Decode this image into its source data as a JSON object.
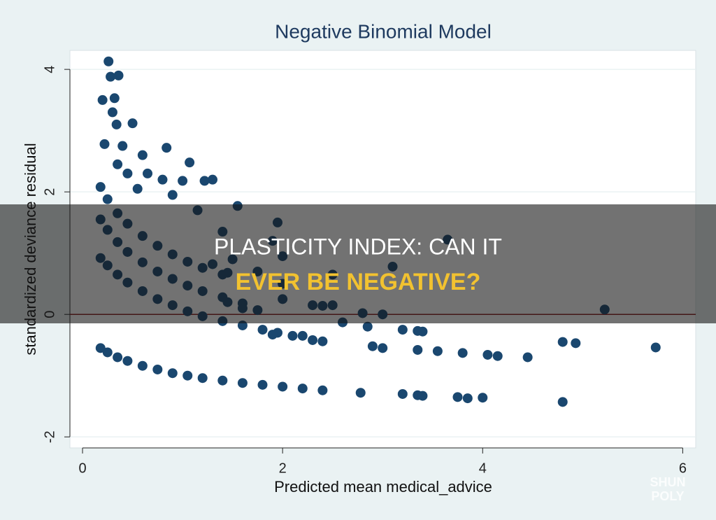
{
  "chart_data": {
    "type": "scatter",
    "title": "Negative Binomial Model",
    "x_label": "Predicted mean medical_advice",
    "y_label": "standardized deviance residual",
    "color": "#1a476f",
    "reference_line": 0,
    "reference_color": "#8b1a1a",
    "grid": true,
    "xlim": [
      -0.126,
      6.13
    ],
    "ylim": [
      -2.18,
      4.31
    ],
    "xticks": [
      0,
      2,
      4,
      6
    ],
    "yticks": [
      -2,
      0,
      2,
      4
    ],
    "x": [
      0.18,
      0.25,
      0.35,
      0.45,
      0.6,
      0.75,
      0.9,
      1.05,
      1.2,
      1.4,
      1.6,
      1.8,
      2.0,
      2.2,
      2.4,
      0.18,
      0.25,
      0.35,
      0.45,
      0.6,
      0.75,
      0.9,
      1.05,
      1.2,
      1.4,
      1.6,
      1.8,
      1.95,
      2.1,
      0.18,
      0.25,
      0.35,
      0.45,
      0.6,
      0.75,
      0.9,
      1.05,
      1.2,
      1.4,
      1.6,
      0.18,
      0.25,
      0.35,
      0.45,
      0.6,
      0.75,
      0.9,
      1.05,
      1.2,
      1.4,
      0.26,
      0.28,
      0.36,
      0.32,
      0.2,
      0.3,
      0.34,
      0.5,
      0.22,
      0.4,
      0.84,
      0.6,
      0.35,
      0.45,
      0.65,
      1.07,
      0.8,
      1.0,
      1.22,
      0.55,
      1.3,
      0.9,
      1.55,
      1.15,
      1.4,
      1.95,
      1.9,
      2.0,
      1.5,
      1.75,
      2.0,
      2.5,
      3.1,
      3.65,
      2.0,
      2.5,
      2.6,
      2.85,
      2.8,
      3.0,
      3.2,
      3.35,
      3.4,
      2.9,
      3.0,
      3.35,
      3.55,
      3.8,
      4.05,
      4.15,
      4.45,
      4.8,
      4.93,
      5.73,
      5.22,
      2.78,
      3.2,
      3.35,
      3.4,
      3.75,
      3.85,
      4.0,
      4.8,
      2.3,
      2.4,
      2.2,
      1.9,
      2.3,
      2.4,
      1.6,
      1.75,
      1.45,
      1.45,
      1.3
    ],
    "y": [
      -0.55,
      -0.62,
      -0.7,
      -0.76,
      -0.84,
      -0.9,
      -0.96,
      -1.0,
      -1.04,
      -1.08,
      -1.12,
      -1.15,
      -1.18,
      -1.21,
      -1.24,
      0.92,
      0.8,
      0.65,
      0.52,
      0.38,
      0.25,
      0.15,
      0.05,
      -0.03,
      -0.11,
      -0.18,
      -0.25,
      -0.3,
      -0.35,
      1.55,
      1.38,
      1.18,
      1.02,
      0.85,
      0.7,
      0.58,
      0.47,
      0.38,
      0.28,
      0.18,
      2.08,
      1.88,
      1.65,
      1.48,
      1.28,
      1.12,
      0.98,
      0.86,
      0.76,
      0.65,
      4.13,
      3.88,
      3.9,
      3.53,
      3.5,
      3.3,
      3.1,
      3.12,
      2.78,
      2.75,
      2.72,
      2.6,
      2.45,
      2.3,
      2.3,
      2.48,
      2.2,
      2.18,
      2.18,
      2.05,
      2.2,
      1.95,
      1.77,
      1.7,
      1.35,
      1.5,
      1.2,
      0.95,
      0.9,
      0.7,
      0.5,
      0.65,
      0.78,
      1.22,
      0.25,
      0.15,
      -0.13,
      -0.2,
      0.02,
      0.0,
      -0.25,
      -0.27,
      -0.28,
      -0.52,
      -0.55,
      -0.58,
      -0.6,
      -0.63,
      -0.66,
      -0.68,
      -0.7,
      -0.45,
      -0.47,
      -0.54,
      0.08,
      -1.28,
      -1.3,
      -1.32,
      -1.33,
      -1.35,
      -1.37,
      -1.36,
      -1.43,
      -0.42,
      -0.44,
      -0.35,
      -0.33,
      0.15,
      0.14,
      0.1,
      0.07,
      0.2,
      0.68,
      0.82
    ]
  },
  "overlay": {
    "line1": "PLASTICITY INDEX: CAN IT",
    "line2": "EVER BE NEGATIVE?"
  },
  "watermark": {
    "line1": "SHUN",
    "line2": "POLY"
  }
}
